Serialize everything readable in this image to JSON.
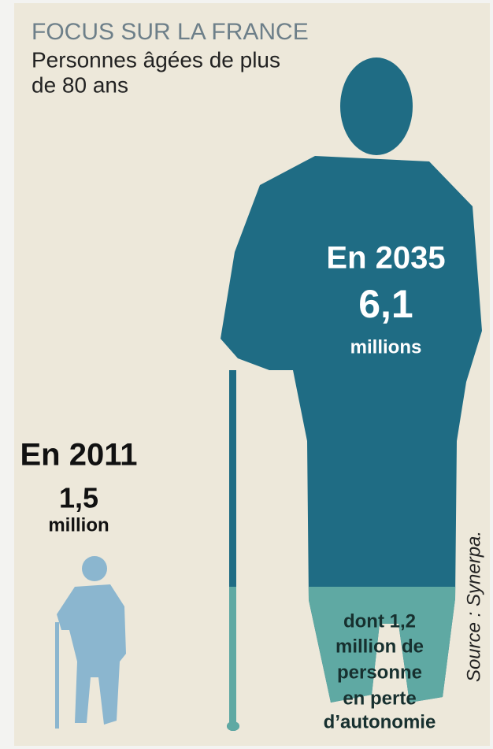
{
  "header": {
    "kicker": "FOCUS SUR LA FRANCE",
    "title_lines": [
      "Personnes âgées de plus",
      "de 80 ans"
    ]
  },
  "future": {
    "year_label": "En 2035",
    "value": "6,1",
    "unit": "millions",
    "detail_lines": [
      "dont 1,2",
      "million de",
      "personne",
      "en perte",
      "d’autonomie"
    ]
  },
  "present": {
    "year_label": "En 2011",
    "value": "1,5",
    "unit": "million"
  },
  "source": "Source : Synerpa."
}
